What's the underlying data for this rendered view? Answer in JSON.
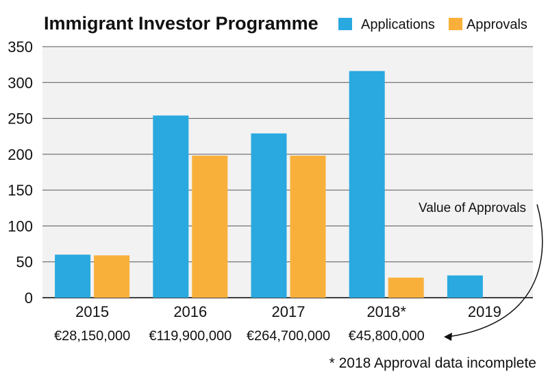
{
  "chart_data": {
    "type": "bar",
    "title": "Immigrant Investor Programme",
    "categories": [
      "2015",
      "2016",
      "2017",
      "2018*",
      "2019"
    ],
    "series": [
      {
        "name": "Applications",
        "color": "#29a9e0",
        "values": [
          60,
          254,
          229,
          316,
          31
        ]
      },
      {
        "name": "Approvals",
        "color": "#f9b03b",
        "values": [
          59,
          198,
          198,
          28,
          null
        ]
      }
    ],
    "category_values": [
      "€28,150,000",
      "€119,900,000",
      "€264,700,000",
      "€45,800,000",
      ""
    ],
    "annotation": "Value of Approvals",
    "footnote": "* 2018 Approval data incomplete",
    "yticks": [
      "0",
      "50",
      "100",
      "150",
      "200",
      "250",
      "300",
      "350"
    ],
    "ylim": [
      0,
      350
    ],
    "grid": true,
    "legend_position": "top-right"
  }
}
